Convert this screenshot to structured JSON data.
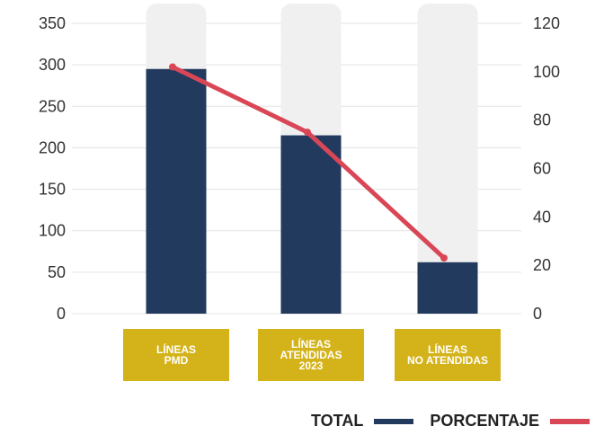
{
  "chart_data": {
    "type": "bar",
    "categories": [
      "LÍNEAS\nPMD",
      "LÍNEAS\nATENDIDAS\n2023",
      "LÍNEAS\nNO ATENDIDAS"
    ],
    "series": [
      {
        "name": "TOTAL",
        "type": "bar",
        "axis": "left",
        "color": "#223a5e",
        "values": [
          295,
          215,
          62
        ]
      },
      {
        "name": "PORCENTAJE",
        "type": "line",
        "axis": "right",
        "color": "#d94756",
        "values": [
          102,
          75,
          23
        ]
      }
    ],
    "left_axis": {
      "min": 0,
      "max": 350,
      "ticks": [
        0,
        50,
        100,
        150,
        200,
        250,
        300,
        350
      ]
    },
    "right_axis": {
      "min": 0,
      "max": 120,
      "ticks": [
        0,
        20,
        40,
        60,
        80,
        100,
        120
      ]
    },
    "background_bar_color": "#f0f0f0",
    "category_box_color": "#d4b31a",
    "grid": true,
    "legend_position": "bottom-right"
  }
}
